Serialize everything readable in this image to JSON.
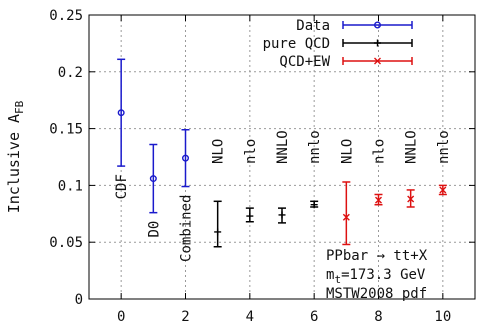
{
  "chart_data": {
    "type": "scatter",
    "ylabel_main": "Inclusive A",
    "ylabel_sub": "FB",
    "xlim": [
      -1,
      11
    ],
    "ylim": [
      0,
      0.25
    ],
    "x_ticks": [
      0,
      2,
      4,
      6,
      8,
      10
    ],
    "x_tick_labels": [
      "0",
      "2",
      "4",
      "6",
      "8",
      "10"
    ],
    "y_ticks": [
      0,
      0.05,
      0.1,
      0.15,
      0.2,
      0.25
    ],
    "y_tick_labels": [
      "0",
      "0.05",
      "0.1",
      "0.15",
      "0.2",
      "0.25"
    ],
    "grid": true,
    "legend_position": "top-right",
    "series": [
      {
        "name": "Data",
        "color": "#1a1acc",
        "marker": "circle",
        "points": [
          {
            "x": 0,
            "y": 0.164,
            "low": 0.117,
            "high": 0.211,
            "label": "CDF"
          },
          {
            "x": 1,
            "y": 0.106,
            "low": 0.076,
            "high": 0.136,
            "label": "D0"
          },
          {
            "x": 2,
            "y": 0.124,
            "low": 0.099,
            "high": 0.149,
            "label": "Combined"
          }
        ]
      },
      {
        "name": "pure QCD",
        "color": "#000000",
        "marker": "plus",
        "points": [
          {
            "x": 3,
            "y": 0.059,
            "low": 0.046,
            "high": 0.086,
            "label": "NLO"
          },
          {
            "x": 4,
            "y": 0.073,
            "low": 0.068,
            "high": 0.08,
            "label": "nlo"
          },
          {
            "x": 5,
            "y": 0.074,
            "low": 0.067,
            "high": 0.08,
            "label": "NNLO"
          },
          {
            "x": 6,
            "y": 0.083,
            "low": 0.081,
            "high": 0.086,
            "label": "nnlo"
          }
        ]
      },
      {
        "name": "QCD+EW",
        "color": "#dd1111",
        "marker": "cross",
        "points": [
          {
            "x": 7,
            "y": 0.072,
            "low": 0.048,
            "high": 0.103,
            "label": "NLO"
          },
          {
            "x": 8,
            "y": 0.087,
            "low": 0.083,
            "high": 0.092,
            "label": "nlo"
          },
          {
            "x": 9,
            "y": 0.088,
            "low": 0.081,
            "high": 0.096,
            "label": "NNLO"
          },
          {
            "x": 10,
            "y": 0.096,
            "low": 0.092,
            "high": 0.1,
            "label": "nnlo"
          }
        ]
      }
    ],
    "info_box": {
      "line1": "PPbar → tt+X",
      "line2_main": "m",
      "line2_sub": "t",
      "line2_rest": "=173.3 GeV",
      "line3": "MSTW2008 pdf"
    }
  }
}
